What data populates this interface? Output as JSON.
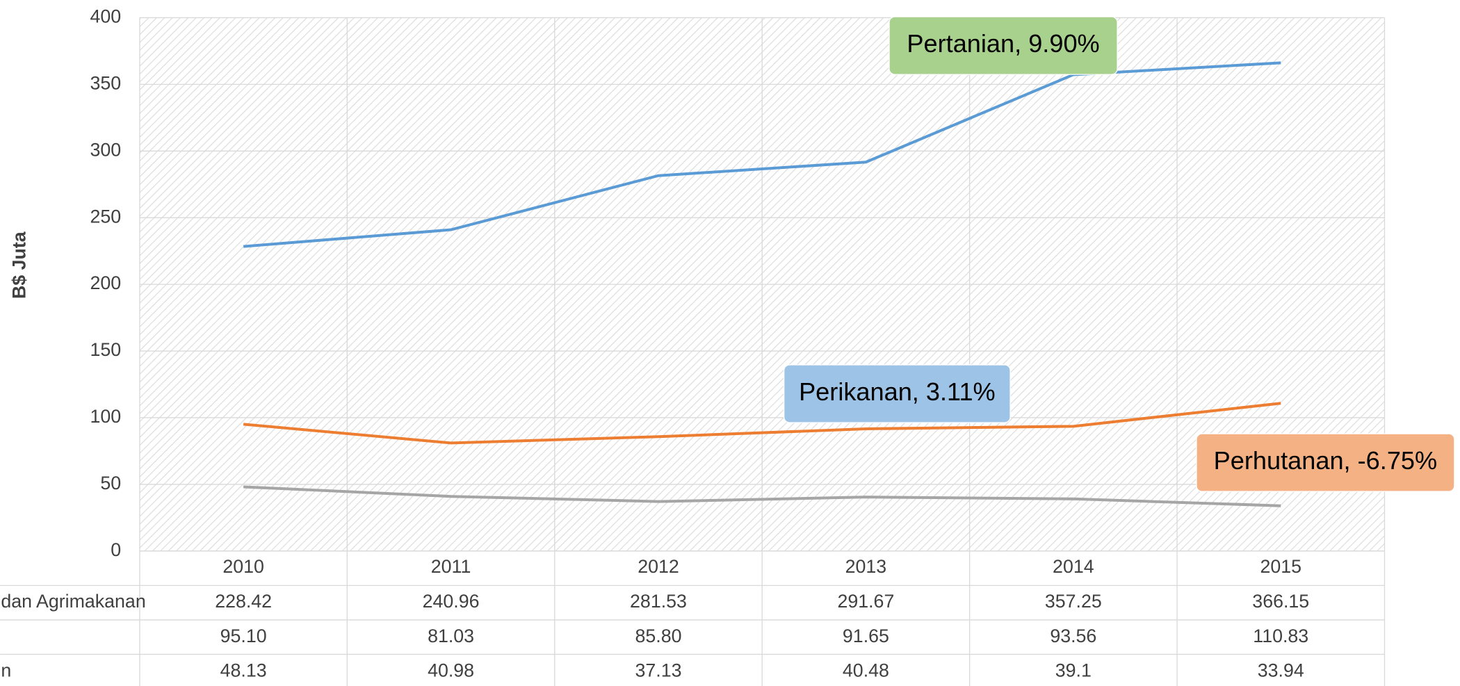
{
  "chart_data": {
    "type": "line",
    "y_label": "B$ Juta",
    "categories": [
      "2010",
      "2011",
      "2012",
      "2013",
      "2014",
      "2015"
    ],
    "series": [
      {
        "name": "dan Agrimakanan",
        "color": "#5b9bd5",
        "values": [
          228.42,
          240.96,
          281.53,
          291.67,
          357.25,
          366.15
        ],
        "value_labels": [
          "228.42",
          "240.96",
          "281.53",
          "291.67",
          "357.25",
          "366.15"
        ]
      },
      {
        "color": "#ed7d31",
        "values": [
          95.1,
          81.03,
          85.8,
          91.65,
          93.56,
          110.83
        ],
        "value_labels": [
          "95.10",
          "81.03",
          "85.80",
          "91.65",
          "93.56",
          "110.83"
        ]
      },
      {
        "name": "n",
        "color": "#a5a5a5",
        "values": [
          48.13,
          40.98,
          37.13,
          40.48,
          39.1,
          33.94
        ],
        "value_labels": [
          "48.13",
          "40.98",
          "37.13",
          "40.48",
          "39.1",
          "33.94"
        ]
      }
    ],
    "ylim": [
      0,
      400
    ],
    "yticks": [
      0,
      50,
      100,
      150,
      200,
      250,
      300,
      350,
      400
    ],
    "grid": true,
    "annotations": [
      {
        "text": "Pertanian, 9.90%",
        "color": "#a9d18e"
      },
      {
        "text": "Perikanan, 3.11%",
        "color": "#9dc3e6"
      },
      {
        "text": "Perhutanan, -6.75%",
        "color": "#f4b183"
      }
    ]
  }
}
